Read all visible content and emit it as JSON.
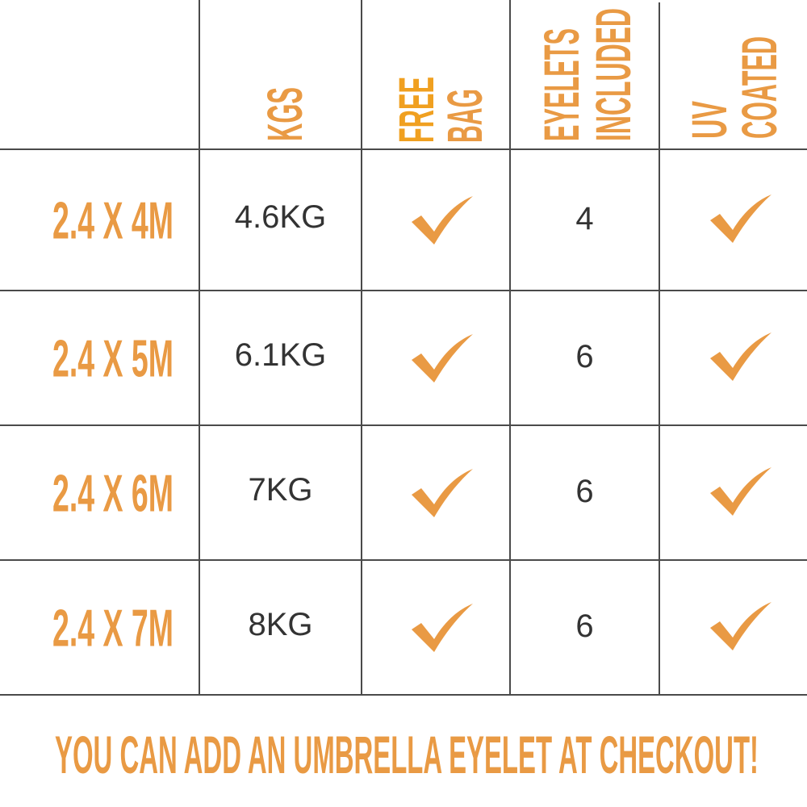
{
  "accent_color": "#E99A44",
  "headers": [
    {
      "lines": [
        "KGS"
      ]
    },
    {
      "lines": [
        "FREE",
        "BAG"
      ]
    },
    {
      "lines": [
        "EYELETS",
        "INCLUDED"
      ]
    },
    {
      "lines": [
        "UV",
        "COATED"
      ]
    }
  ],
  "rows": [
    {
      "size": "2.4 X 4M",
      "weight": "4.6KG",
      "free_bag": true,
      "eyelets": "4",
      "uv_coated": true
    },
    {
      "size": "2.4 X 5M",
      "weight": "6.1KG",
      "free_bag": true,
      "eyelets": "6",
      "uv_coated": true
    },
    {
      "size": "2.4 X 6M",
      "weight": "7KG",
      "free_bag": true,
      "eyelets": "6",
      "uv_coated": true
    },
    {
      "size": "2.4 X 7M",
      "weight": "8KG",
      "free_bag": true,
      "eyelets": "6",
      "uv_coated": true
    }
  ],
  "check_icon": "checkmark-icon",
  "footer": "YOU CAN ADD AN UMBRELLA EYELET AT CHECKOUT!"
}
